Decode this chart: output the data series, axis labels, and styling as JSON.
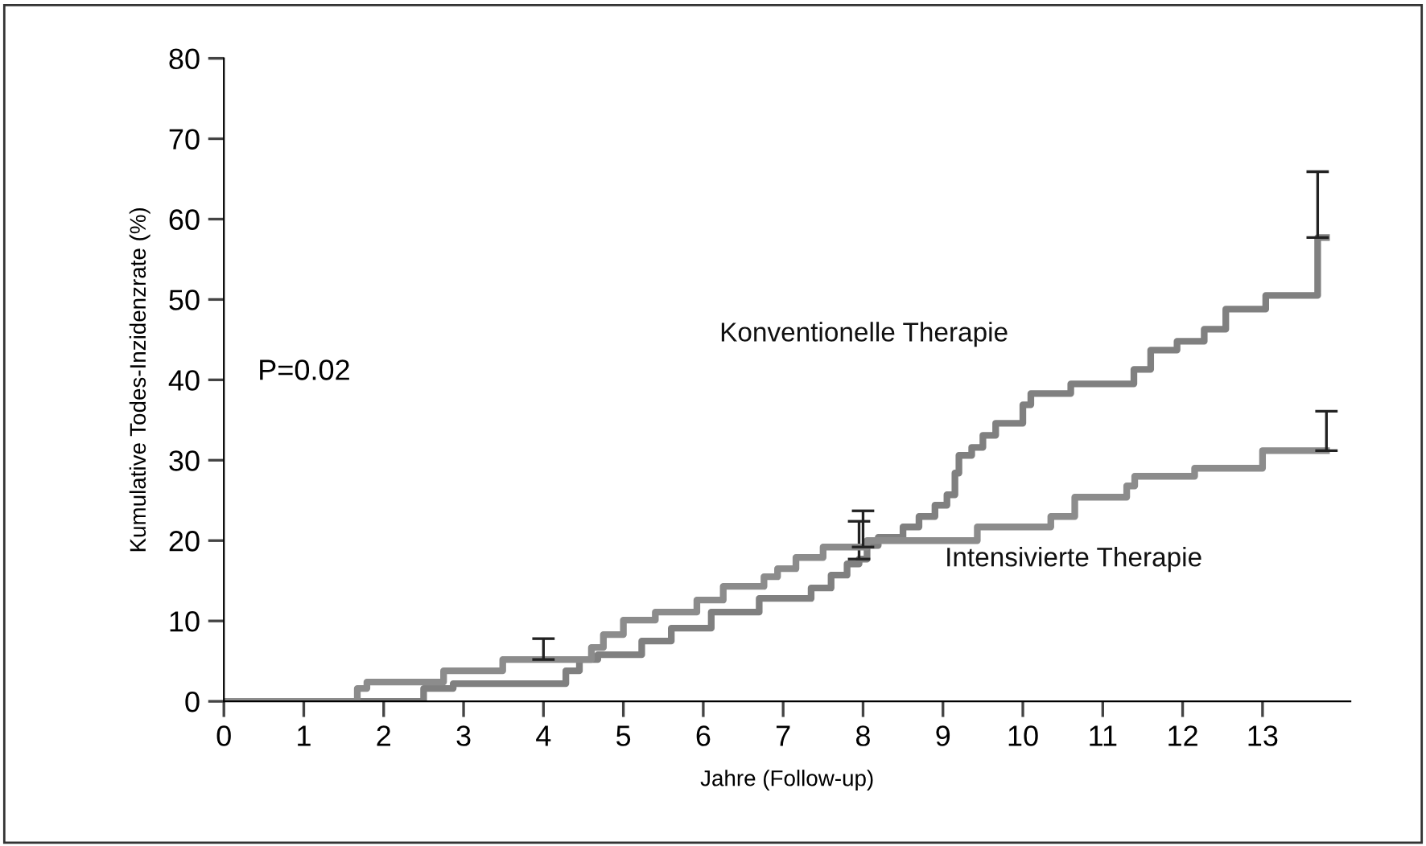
{
  "chart_data": {
    "type": "step",
    "xlabel": "Jahre (Follow-up)",
    "ylabel": "Kumulative Todes-Inzidenzrate (%)",
    "annotations": [
      "P=0.02"
    ],
    "xlim": [
      0,
      14.1
    ],
    "ylim": [
      0,
      80
    ],
    "xticks": [
      0,
      1,
      2,
      3,
      4,
      5,
      6,
      7,
      8,
      9,
      10,
      11,
      12,
      13
    ],
    "yticks": [
      0,
      10,
      20,
      30,
      40,
      50,
      60,
      70,
      80
    ],
    "grid": false,
    "legend": false,
    "series": [
      {
        "name": "Konventionelle Therapie",
        "color": "#808080",
        "x": [
          0,
          2.5,
          2.87,
          4.28,
          4.45,
          4.68,
          5.23,
          5.6,
          6.1,
          6.7,
          7.35,
          7.6,
          7.8,
          7.95,
          8.05,
          8.19,
          8.5,
          8.7,
          8.9,
          9.05,
          9.15,
          9.2,
          9.36,
          9.5,
          9.66,
          10.0,
          10.1,
          10.6,
          11.39,
          11.6,
          11.93,
          12.27,
          12.54,
          13.04,
          13.69,
          13.8
        ],
        "values": [
          0,
          1.6,
          2.2,
          3.8,
          5.2,
          5.8,
          7.5,
          9.1,
          11.1,
          12.8,
          14.1,
          15.7,
          17.1,
          17.7,
          19.4,
          20.4,
          21.7,
          23.0,
          24.4,
          25.7,
          28.4,
          30.6,
          31.6,
          33.1,
          34.6,
          36.9,
          38.3,
          39.5,
          41.3,
          43.7,
          44.8,
          46.3,
          48.8,
          50.5,
          57.7,
          57.7
        ],
        "errors": [
          null,
          null,
          null,
          null,
          null,
          null,
          null,
          null,
          null,
          null,
          null,
          null,
          null,
          [
            17.7,
            22.4
          ],
          null,
          null,
          null,
          null,
          null,
          null,
          null,
          null,
          null,
          null,
          null,
          null,
          null,
          null,
          null,
          null,
          null,
          null,
          null,
          null,
          [
            57.7,
            65.9
          ],
          null
        ]
      },
      {
        "name": "Intensivierte Therapie",
        "color": "#8c8c8c",
        "x": [
          0,
          1.67,
          1.79,
          2.75,
          3.49,
          4.0,
          4.6,
          4.75,
          5.0,
          5.4,
          5.92,
          6.25,
          6.76,
          6.93,
          7.16,
          7.5,
          8.0,
          8.05,
          9.43,
          10.35,
          10.65,
          11.3,
          11.4,
          12.15,
          13.0,
          13.8
        ],
        "values": [
          0,
          1.6,
          2.4,
          3.8,
          5.2,
          5.2,
          6.7,
          8.3,
          10.1,
          11.1,
          12.6,
          14.3,
          15.5,
          16.5,
          17.9,
          19.2,
          19.2,
          20.0,
          21.7,
          23.0,
          25.4,
          26.8,
          28.0,
          29.0,
          31.2,
          31.2
        ],
        "errors": [
          null,
          null,
          null,
          null,
          null,
          [
            5.2,
            7.8
          ],
          null,
          null,
          null,
          null,
          null,
          null,
          null,
          null,
          null,
          null,
          [
            19.2,
            23.7
          ],
          null,
          null,
          null,
          null,
          null,
          null,
          null,
          null,
          [
            31.2,
            36.1
          ]
        ]
      }
    ]
  }
}
